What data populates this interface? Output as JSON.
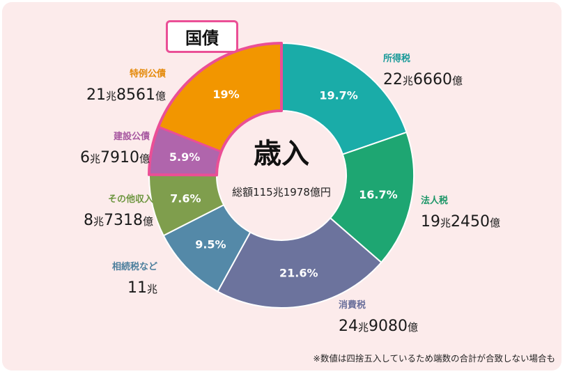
{
  "colors": {
    "background": "#fcebeb",
    "callout_border": "#ea4f96"
  },
  "chart_data": {
    "type": "pie",
    "variant": "donut",
    "center_title": "歳入",
    "center_subtitle": "総額115兆1978億円",
    "categories": [
      "所得税",
      "法人税",
      "消費税",
      "相続税など",
      "その他収入",
      "建設公債",
      "特例公債"
    ],
    "slices": [
      {
        "label": "所得税",
        "percent": 19.7,
        "pct_label": "19.7%",
        "amount_main": "22",
        "amount_unit": "兆",
        "amount_rest": "6660",
        "amount_unit2": "億",
        "color": "#1aaca8",
        "label_color": "#1a9a99"
      },
      {
        "label": "法人税",
        "percent": 16.7,
        "pct_label": "16.7%",
        "amount_main": "19",
        "amount_unit": "兆",
        "amount_rest": "2450",
        "amount_unit2": "億",
        "color": "#1ea672",
        "label_color": "#1a9566"
      },
      {
        "label": "消費税",
        "percent": 21.6,
        "pct_label": "21.6%",
        "amount_main": "24",
        "amount_unit": "兆",
        "amount_rest": "9080",
        "amount_unit2": "億",
        "color": "#6c739d",
        "label_color": "#6a6f9b"
      },
      {
        "label": "相続税など",
        "percent": 9.5,
        "pct_label": "9.5%",
        "amount_main": "11",
        "amount_unit": "兆",
        "amount_rest": "",
        "amount_unit2": "",
        "color": "#5489a8",
        "label_color": "#4d7f9d"
      },
      {
        "label": "その他収入",
        "percent": 7.6,
        "pct_label": "7.6%",
        "amount_main": "8",
        "amount_unit": "兆",
        "amount_rest": "7318",
        "amount_unit2": "億",
        "color": "#7f9e4d",
        "label_color": "#6e9640"
      },
      {
        "label": "建設公債",
        "percent": 5.9,
        "pct_label": "5.9%",
        "amount_main": "6",
        "amount_unit": "兆",
        "amount_rest": "7910",
        "amount_unit2": "億",
        "color": "#b065ac",
        "label_color": "#a6569f"
      },
      {
        "label": "特例公債",
        "percent": 19.0,
        "pct_label": "19%",
        "amount_main": "21",
        "amount_unit": "兆",
        "amount_rest": "8561",
        "amount_unit2": "億",
        "color": "#f29600",
        "label_color": "#e48a0a"
      }
    ],
    "highlight_group": {
      "label": "国債",
      "members": [
        "建設公債",
        "特例公債"
      ]
    }
  },
  "footnote": "※数値は四捨五入しているため端数の合計が合致しない場合も"
}
